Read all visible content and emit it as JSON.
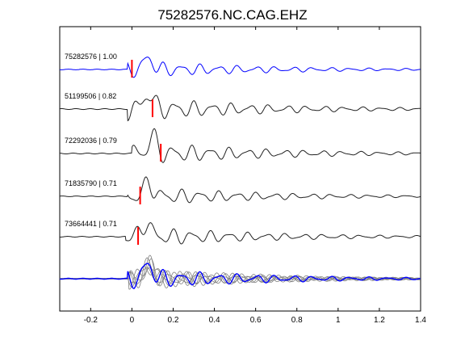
{
  "chart_data": {
    "type": "line",
    "title": "75282576.NC.CAG.EHZ",
    "xlabel": "",
    "ylabel": "",
    "xlim": [
      -0.35,
      1.4
    ],
    "x_ticks": [
      -0.2,
      0,
      0.2,
      0.4,
      0.6,
      0.8,
      1,
      1.2,
      1.4
    ],
    "x_tick_labels": [
      "-0.2",
      "0",
      "0.2",
      "0.4",
      "0.6",
      "0.8",
      "1",
      "1.2",
      "1.4"
    ],
    "grid": false,
    "colors": {
      "reference": "#0000ff",
      "trace": "#222222",
      "pick": "#ff0000",
      "overlay": "#808080"
    },
    "series": [
      {
        "label": "75282576 | 1.00",
        "pick_x": 0.0,
        "color": "#0000ff",
        "shift": 0.0,
        "amp": 1.0
      },
      {
        "label": "51199506 | 0.82",
        "pick_x": 0.1,
        "color": "#222222",
        "shift": 0.0,
        "amp": 1.15
      },
      {
        "label": "72292036 | 0.79",
        "pick_x": 0.14,
        "color": "#222222",
        "shift": 0.02,
        "amp": 1.05
      },
      {
        "label": "71835790 | 0.71",
        "pick_x": 0.04,
        "color": "#222222",
        "shift": 0.0,
        "amp": 1.0
      },
      {
        "label": "73664441 | 0.71",
        "pick_x": 0.03,
        "color": "#222222",
        "shift": -0.01,
        "amp": 1.05
      }
    ],
    "overlay": {
      "description_visible": false
    }
  }
}
